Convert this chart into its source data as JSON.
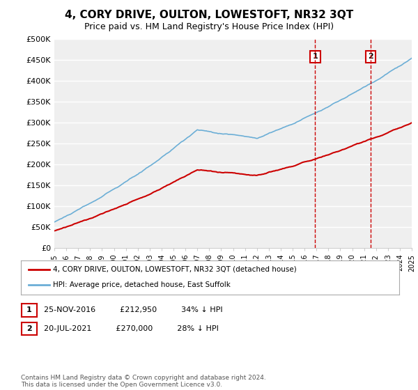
{
  "title": "4, CORY DRIVE, OULTON, LOWESTOFT, NR32 3QT",
  "subtitle": "Price paid vs. HM Land Registry's House Price Index (HPI)",
  "hpi_color": "#6baed6",
  "price_color": "#cc0000",
  "annotation_color": "#cc0000",
  "background_color": "#ffffff",
  "plot_bg_color": "#efefef",
  "grid_color": "#ffffff",
  "ylim": [
    0,
    500000
  ],
  "yticks": [
    0,
    50000,
    100000,
    150000,
    200000,
    250000,
    300000,
    350000,
    400000,
    450000,
    500000
  ],
  "ytick_labels": [
    "£0",
    "£50K",
    "£100K",
    "£150K",
    "£200K",
    "£250K",
    "£300K",
    "£350K",
    "£400K",
    "£450K",
    "£500K"
  ],
  "sale1_date": 2016.9,
  "sale1_price": 212950,
  "sale2_date": 2021.55,
  "sale2_price": 270000,
  "legend_red": "4, CORY DRIVE, OULTON, LOWESTOFT, NR32 3QT (detached house)",
  "legend_blue": "HPI: Average price, detached house, East Suffolk",
  "table_row1": [
    "1",
    "25-NOV-2016",
    "£212,950",
    "34% ↓ HPI"
  ],
  "table_row2": [
    "2",
    "20-JUL-2021",
    "£270,000",
    "28% ↓ HPI"
  ],
  "footer": "Contains HM Land Registry data © Crown copyright and database right 2024.\nThis data is licensed under the Open Government Licence v3.0.",
  "xmin": 1995,
  "xmax": 2025
}
